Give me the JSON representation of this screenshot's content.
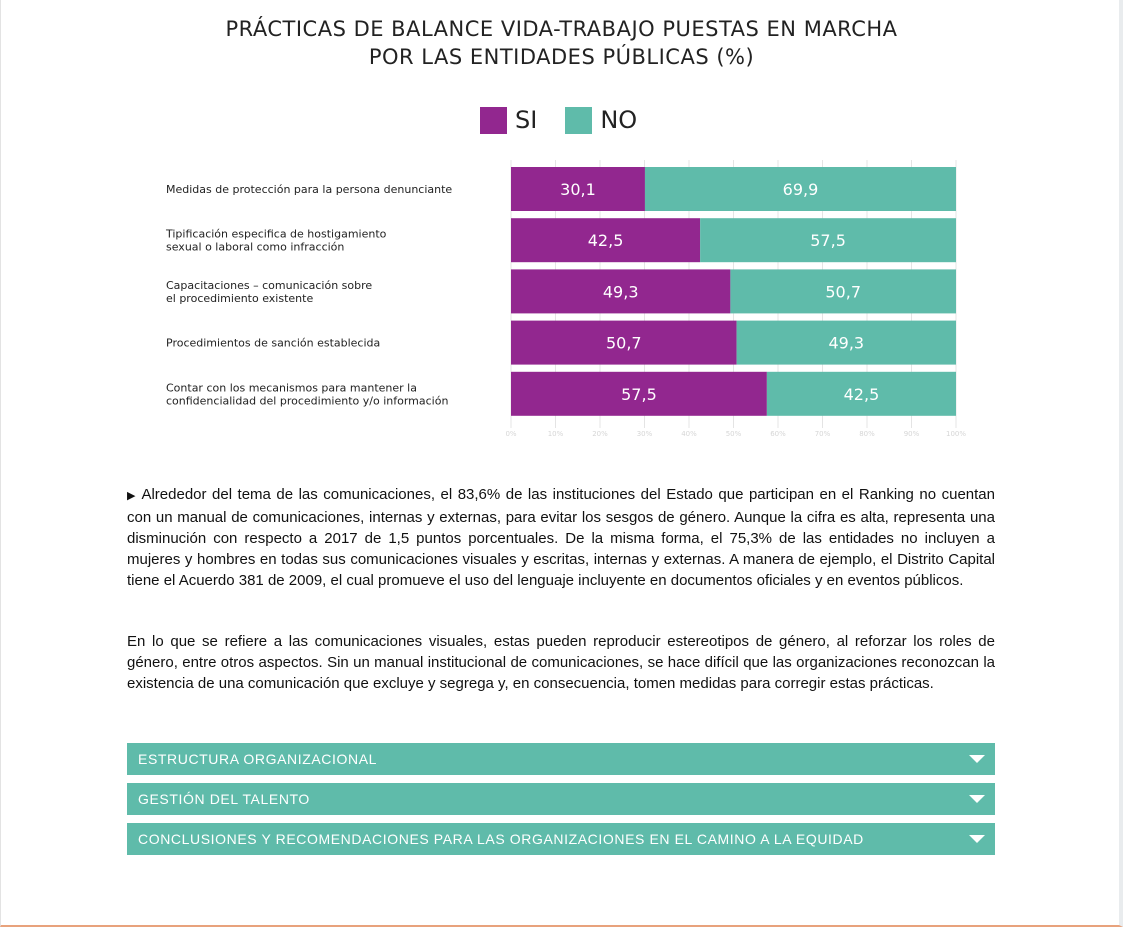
{
  "chart_data": {
    "type": "bar",
    "orientation": "horizontal",
    "stacked": true,
    "title": "PRÁCTICAS DE BALANCE VIDA-TRABAJO PUESTAS EN MARCHA",
    "subtitle": "POR LAS ENTIDADES PÚBLICAS (%)",
    "categories": [
      [
        "Medidas de protección para la persona denunciante"
      ],
      [
        "Tipificación especifica de hostigamiento",
        "sexual o laboral como infracción"
      ],
      [
        "Capacitaciones – comunicación sobre",
        "el procedimiento existente"
      ],
      [
        "Procedimientos de sanción establecida"
      ],
      [
        "Contar con los mecanismos para mantener la",
        "confidencialidad del procedimiento y/o información"
      ]
    ],
    "series": [
      {
        "name": "SI",
        "color": "#92278f",
        "values": [
          30.1,
          42.5,
          49.3,
          50.7,
          57.5
        ],
        "labels": [
          "30,1",
          "42,5",
          "49,3",
          "50,7",
          "57,5"
        ]
      },
      {
        "name": "NO",
        "color": "#5fbbaa",
        "values": [
          69.9,
          57.5,
          50.7,
          49.3,
          42.5
        ],
        "labels": [
          "69,9",
          "57,5",
          "50,7",
          "49,3",
          "42,5"
        ]
      }
    ],
    "xlim": [
      0,
      100
    ],
    "xticks": [
      "0%",
      "10%",
      "20%",
      "30%",
      "40%",
      "50%",
      "60%",
      "70%",
      "80%",
      "90%",
      "100%"
    ],
    "grid": true,
    "legend": "top-center"
  },
  "paragraphs": {
    "p1": "Alrededor del tema de las comunicaciones, el 83,6% de las instituciones del Estado que participan en el Ranking no cuentan con un manual de comunicaciones, internas y externas, para evitar los sesgos de género. Aunque la cifra es alta, representa una disminución con respecto a 2017 de 1,5 puntos porcentuales. De la misma forma, el 75,3% de las entidades no incluyen a mujeres y hombres en todas sus comunicaciones visuales y escritas, internas y externas. A manera de ejemplo, el Distrito Capital tiene el Acuerdo 381 de 2009, el cual promueve el uso del lenguaje incluyente en documentos oficiales y en eventos públicos.",
    "p2": "En lo que se refiere a las comunicaciones visuales, estas pueden reproducir estereotipos de género, al reforzar los roles de género, entre otros aspectos. Sin un manual institucional de comunicaciones, se hace difícil que las organizaciones reconozcan la existencia de una comunicación que excluye y segrega y, en consecuencia, tomen medidas para corregir estas prácticas."
  },
  "bullet_icon": "triangle-right-icon",
  "accordions": [
    {
      "label": "ESTRUCTURA ORGANIZACIONAL",
      "icon": "chevron-down-icon"
    },
    {
      "label": "GESTIÓN DEL TALENTO",
      "icon": "chevron-down-icon"
    },
    {
      "label": "CONCLUSIONES Y RECOMENDACIONES PARA LAS ORGANIZACIONES EN EL CAMINO A LA EQUIDAD",
      "icon": "chevron-down-icon"
    }
  ]
}
